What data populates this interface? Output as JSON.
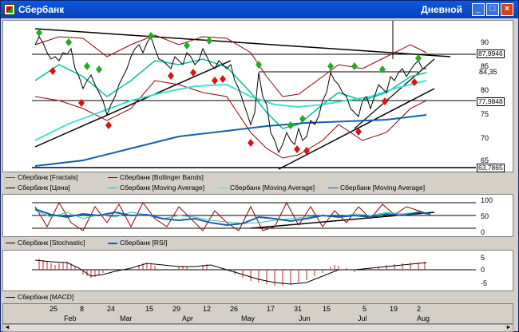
{
  "window": {
    "title": "Сбербанк",
    "period": "Дневной"
  },
  "controls": {
    "minimize": "_",
    "maximize": "□",
    "close": "×"
  },
  "main_axis": {
    "labels": [
      "90",
      "85",
      "80",
      "75",
      "70",
      "65"
    ]
  },
  "main_tags": {
    "t1": "87,9946",
    "t2": "84,35",
    "t3": "77,9848",
    "t4": "63,7865"
  },
  "legend_main": {
    "row1": [
      "Сбербанк [Fractals]",
      "Сбербанк [Bollinger Bands]"
    ],
    "row2": [
      "Сбербанк [Цена]",
      "Сбербанк [Moving Average]",
      "Сбербанк [Moving Average]",
      "Сбербанк [Moving Average]"
    ]
  },
  "osc_axis": {
    "labels": [
      "100",
      "50",
      "0"
    ]
  },
  "legend_osc": [
    "Сбербанк [Stochastic]",
    "Сбербанк [RSI]"
  ],
  "macd_axis": {
    "labels": [
      "5",
      "0",
      "-5"
    ]
  },
  "legend_macd": [
    "Сбербанк [MACD]"
  ],
  "timeline": {
    "days": [
      "25",
      "8",
      "24",
      "15",
      "29",
      "12",
      "26",
      "17",
      "31",
      "15",
      "5",
      "19",
      "2"
    ],
    "months": [
      "Feb",
      "Mar",
      "Apr",
      "May",
      "Jun",
      "Jul",
      "Aug"
    ]
  },
  "colors": {
    "price": "#000000",
    "fractal_up": "#22aa22",
    "fractal_down": "#dd1111",
    "bollinger": "#8b0000",
    "ma_fast": "#00bfa0",
    "ma_mid": "#40e0d0",
    "ma_slow": "#1060b0",
    "stochastic": "#000000",
    "rsi": "#1060b0",
    "macd": "#000000",
    "macd_hist": "#cc2222"
  }
}
